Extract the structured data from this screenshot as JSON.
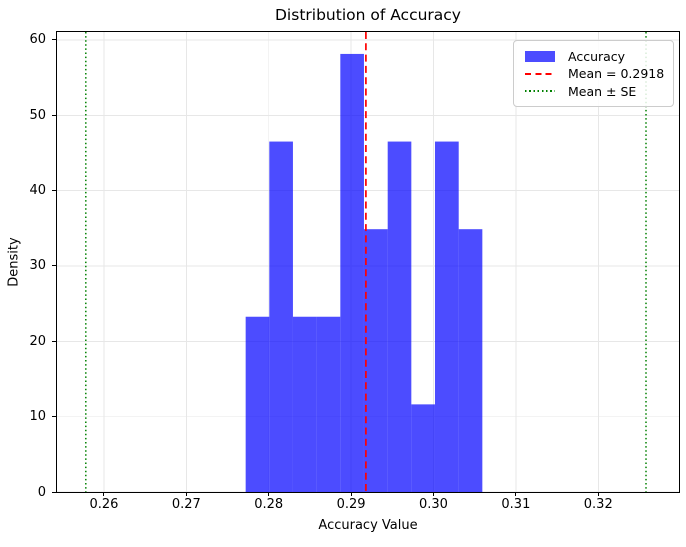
{
  "chart_data": {
    "type": "bar",
    "subtype": "histogram",
    "title": "Distribution of Accuracy",
    "xlabel": "Accuracy Value",
    "ylabel": "Density",
    "xlim": [
      0.2543,
      0.3298
    ],
    "ylim": [
      0,
      61.05
    ],
    "x_ticks": [
      0.26,
      0.27,
      0.28,
      0.29,
      0.3,
      0.31,
      0.32
    ],
    "x_tick_labels": [
      "0.26",
      "0.27",
      "0.28",
      "0.29",
      "0.30",
      "0.31",
      "0.32"
    ],
    "y_ticks": [
      0,
      10,
      20,
      30,
      40,
      50,
      60
    ],
    "y_tick_labels": [
      "0",
      "10",
      "20",
      "30",
      "40",
      "50",
      "60"
    ],
    "bins": {
      "edges": [
        0.2772,
        0.28007,
        0.28294,
        0.28582,
        0.28869,
        0.29156,
        0.29444,
        0.29731,
        0.30018,
        0.30306,
        0.30593
      ],
      "densities": [
        23.26,
        46.51,
        23.26,
        23.26,
        58.14,
        34.88,
        46.51,
        11.63,
        46.51,
        34.88
      ]
    },
    "series_label": "Accuracy",
    "mean_line": {
      "value": 0.2918,
      "label": "Mean = 0.2918",
      "color": "#ff0000",
      "style": "dashed"
    },
    "se_lines": {
      "values": [
        0.2578,
        0.3258
      ],
      "label": "Mean ± SE",
      "color": "#008000",
      "style": "dotted"
    },
    "grid": true,
    "legend_position": "upper right",
    "colors": {
      "bar": "#0000ff",
      "bar_alpha": 0.7,
      "grid": "#e7e7e7",
      "spine": "#000000",
      "text": "#000000"
    }
  },
  "legend": {
    "entries": [
      {
        "label": "Accuracy"
      },
      {
        "label": "Mean = 0.2918"
      },
      {
        "label": "Mean ± SE"
      }
    ]
  }
}
